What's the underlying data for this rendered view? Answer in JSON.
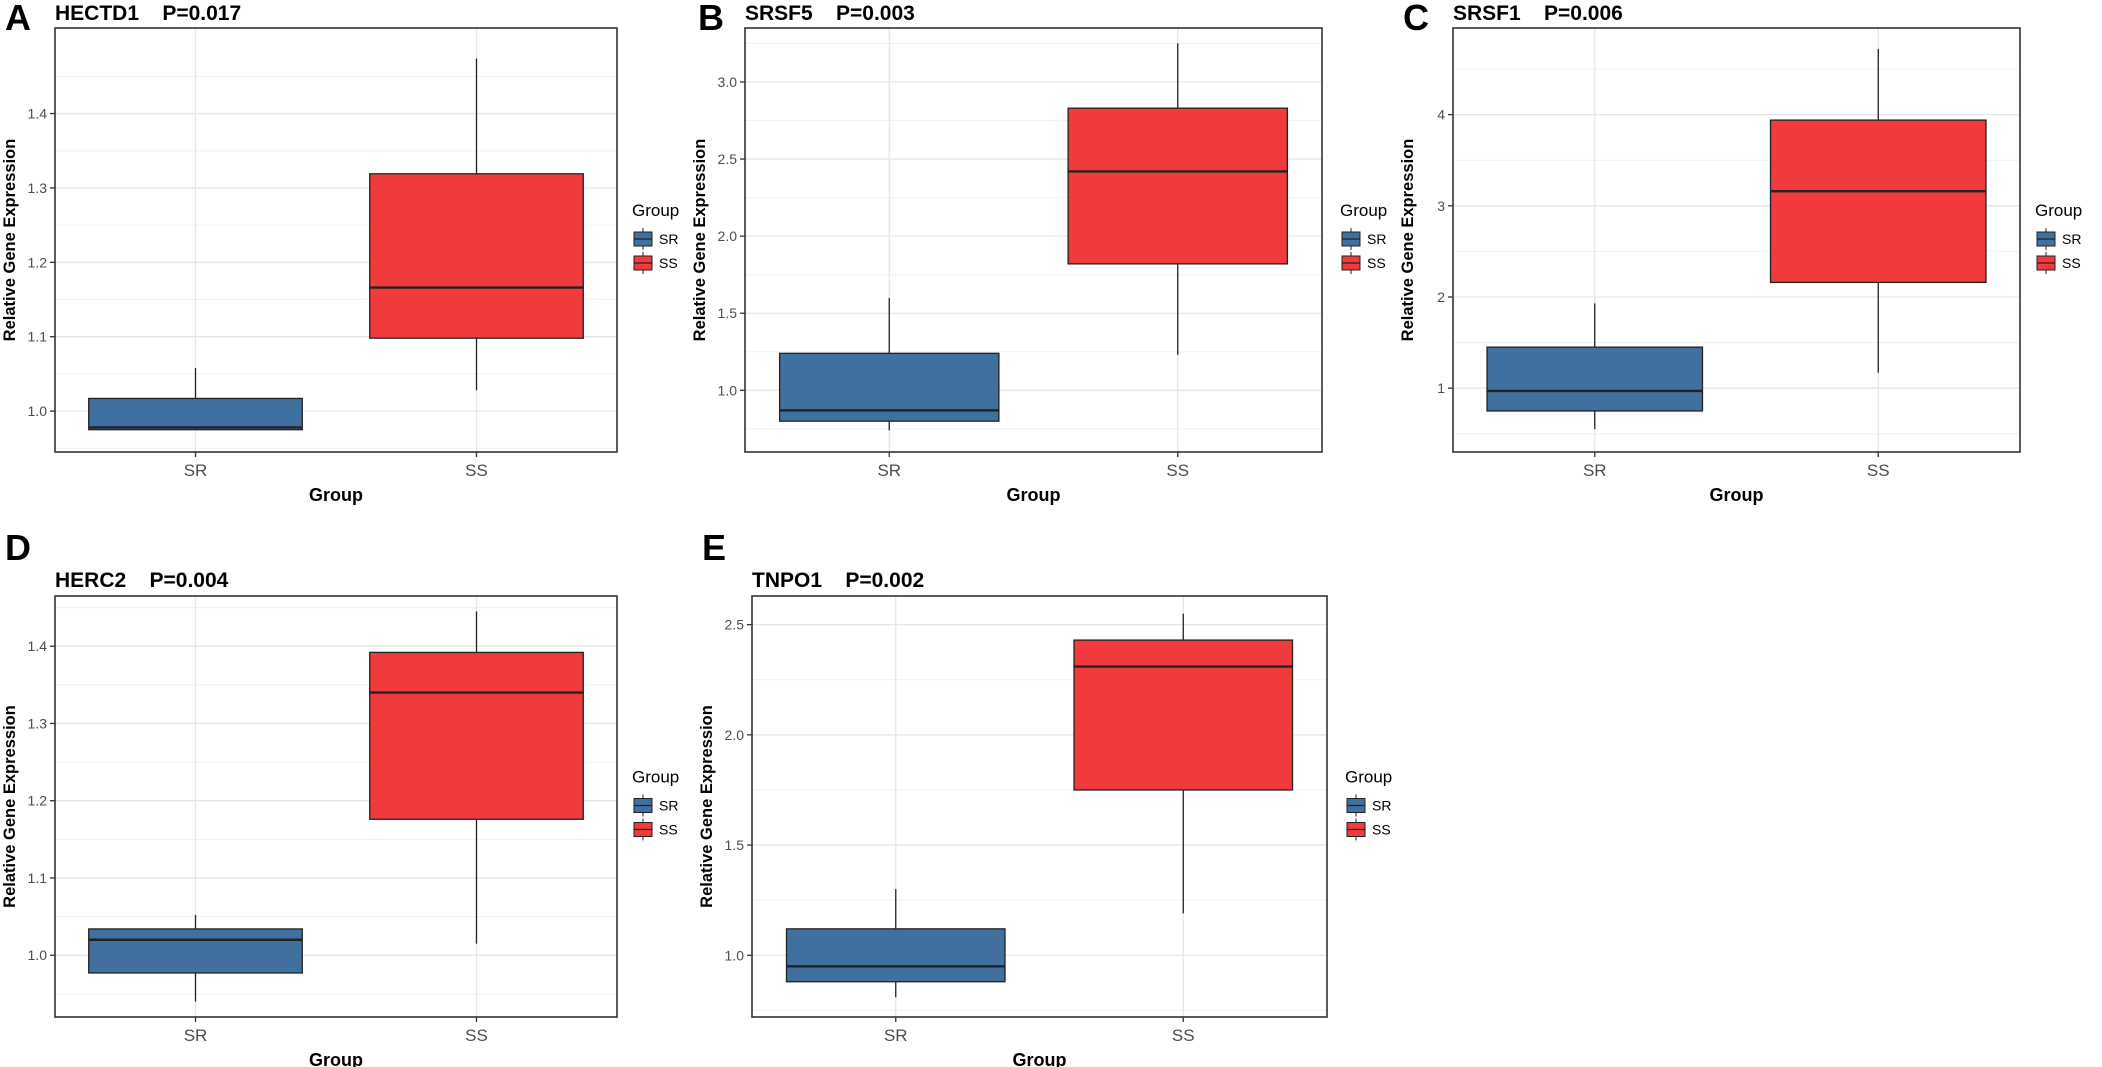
{
  "colors": {
    "SR": "#40709f",
    "SS": "#f03a3c",
    "outline": "#222222",
    "grid": "#e6e6e6",
    "tick_text": "#4d4d4d"
  },
  "chart_data": [
    {
      "panel": "A",
      "type": "boxplot",
      "title": "HECTD1    P=0.017",
      "xlabel": "Group",
      "ylabel": "Relative Gene Expression",
      "categories": [
        "SR",
        "SS"
      ],
      "ylim": [
        0.945,
        1.515
      ],
      "yticks": [
        1.0,
        1.1,
        1.2,
        1.3,
        1.4
      ],
      "ytick_labels": [
        "1.0",
        "1.1",
        "1.2",
        "1.3",
        "1.4"
      ],
      "boxes": [
        {
          "group": "SR",
          "min": 0.975,
          "q1": 0.975,
          "median": 0.978,
          "q3": 1.017,
          "max": 1.058
        },
        {
          "group": "SS",
          "min": 1.028,
          "q1": 1.098,
          "median": 1.166,
          "q3": 1.319,
          "max": 1.474
        }
      ],
      "legend": {
        "title": "Group",
        "entries": [
          "SR",
          "SS"
        ]
      }
    },
    {
      "panel": "B",
      "type": "boxplot",
      "title": "SRSF5    P=0.003",
      "xlabel": "Group",
      "ylabel": "Relative Gene Expression",
      "categories": [
        "SR",
        "SS"
      ],
      "ylim": [
        0.6,
        3.35
      ],
      "yticks": [
        1.0,
        1.5,
        2.0,
        2.5,
        3.0
      ],
      "ytick_labels": [
        "1.0",
        "1.5",
        "2.0",
        "2.5",
        "3.0"
      ],
      "boxes": [
        {
          "group": "SR",
          "min": 0.74,
          "q1": 0.8,
          "median": 0.87,
          "q3": 1.24,
          "max": 1.6
        },
        {
          "group": "SS",
          "min": 1.23,
          "q1": 1.82,
          "median": 2.42,
          "q3": 2.83,
          "max": 3.25
        }
      ],
      "legend": {
        "title": "Group",
        "entries": [
          "SR",
          "SS"
        ]
      }
    },
    {
      "panel": "C",
      "type": "boxplot",
      "title": "SRSF1    P=0.006",
      "xlabel": "Group",
      "ylabel": "Relative Gene Expression",
      "categories": [
        "SR",
        "SS"
      ],
      "ylim": [
        0.3,
        4.95
      ],
      "yticks": [
        1,
        2,
        3,
        4
      ],
      "ytick_labels": [
        "1",
        "2",
        "3",
        "4"
      ],
      "boxes": [
        {
          "group": "SR",
          "min": 0.55,
          "q1": 0.75,
          "median": 0.97,
          "q3": 1.45,
          "max": 1.93
        },
        {
          "group": "SS",
          "min": 1.17,
          "q1": 2.16,
          "median": 3.16,
          "q3": 3.94,
          "max": 4.72
        }
      ],
      "legend": {
        "title": "Group",
        "entries": [
          "SR",
          "SS"
        ]
      }
    },
    {
      "panel": "D",
      "type": "boxplot",
      "title": "HERC2    P=0.004",
      "xlabel": "Group",
      "ylabel": "Relative Gene Expression",
      "categories": [
        "SR",
        "SS"
      ],
      "ylim": [
        0.92,
        1.465
      ],
      "yticks": [
        1.0,
        1.1,
        1.2,
        1.3,
        1.4
      ],
      "ytick_labels": [
        "1.0",
        "1.1",
        "1.2",
        "1.3",
        "1.4"
      ],
      "boxes": [
        {
          "group": "SR",
          "min": 0.94,
          "q1": 0.977,
          "median": 1.02,
          "q3": 1.034,
          "max": 1.052
        },
        {
          "group": "SS",
          "min": 1.015,
          "q1": 1.176,
          "median": 1.34,
          "q3": 1.392,
          "max": 1.445
        }
      ],
      "legend": {
        "title": "Group",
        "entries": [
          "SR",
          "SS"
        ]
      }
    },
    {
      "panel": "E",
      "type": "boxplot",
      "title": "TNPO1    P=0.002",
      "xlabel": "Group",
      "ylabel": "Relative Gene Expression",
      "categories": [
        "SR",
        "SS"
      ],
      "ylim": [
        0.72,
        2.63
      ],
      "yticks": [
        1.0,
        1.5,
        2.0,
        2.5
      ],
      "ytick_labels": [
        "1.0",
        "1.5",
        "2.0",
        "2.5"
      ],
      "boxes": [
        {
          "group": "SR",
          "min": 0.81,
          "q1": 0.88,
          "median": 0.95,
          "q3": 1.12,
          "max": 1.3
        },
        {
          "group": "SS",
          "min": 1.19,
          "q1": 1.75,
          "median": 2.31,
          "q3": 2.43,
          "max": 2.55
        }
      ],
      "legend": {
        "title": "Group",
        "entries": [
          "SR",
          "SS"
        ]
      }
    }
  ]
}
